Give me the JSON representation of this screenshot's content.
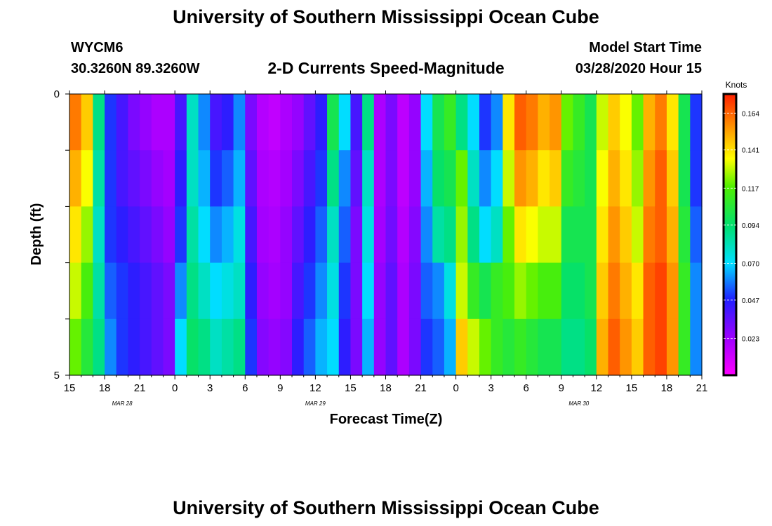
{
  "header": {
    "title": "University of Southern Mississippi Ocean Cube",
    "station": "WYCM6",
    "coords": "30.3260N 89.3260W",
    "subtitle": "2-D Currents Speed-Magnitude",
    "model_start_label": "Model Start Time",
    "model_start_value": "03/28/2020 Hour 15"
  },
  "footer": {
    "title": "University of Southern Mississippi Ocean Cube"
  },
  "chart_data": {
    "type": "heatmap",
    "title": "2-D Currents Speed-Magnitude",
    "xlabel": "Forecast Time(Z)",
    "ylabel": "Depth (ft)",
    "x_ticks": [
      "15",
      "18",
      "21",
      "0",
      "3",
      "6",
      "9",
      "12",
      "15",
      "18",
      "21",
      "0",
      "3",
      "6",
      "9",
      "12",
      "15",
      "18",
      "21"
    ],
    "date_labels": [
      {
        "label": "MAR  28",
        "tick_index": 1.5
      },
      {
        "label": "MAR  29",
        "tick_index": 7
      },
      {
        "label": "MAR  30",
        "tick_index": 14.5
      }
    ],
    "y_ticks": [
      "0",
      "5"
    ],
    "ylim": [
      0,
      5
    ],
    "colorbar": {
      "unit": "Knots",
      "min": 0.0,
      "max": 0.176,
      "ticks": [
        "0.164",
        "0.141",
        "0.117",
        "0.094",
        "0.070",
        "0.047",
        "0.023"
      ],
      "tick_values": [
        0.164,
        0.141,
        0.117,
        0.094,
        0.07,
        0.047,
        0.023
      ]
    },
    "hours": 54,
    "depth_levels": 5,
    "value_unit": "knots",
    "values_by_hour": [
      [
        0.16,
        0.15,
        0.14,
        0.13,
        0.12
      ],
      [
        0.145,
        0.135,
        0.125,
        0.115,
        0.105
      ],
      [
        0.09,
        0.085,
        0.08,
        0.085,
        0.09
      ],
      [
        0.05,
        0.05,
        0.05,
        0.055,
        0.06
      ],
      [
        0.04,
        0.04,
        0.045,
        0.05,
        0.05
      ],
      [
        0.03,
        0.035,
        0.04,
        0.045,
        0.045
      ],
      [
        0.025,
        0.03,
        0.035,
        0.04,
        0.04
      ],
      [
        0.02,
        0.025,
        0.03,
        0.035,
        0.035
      ],
      [
        0.02,
        0.022,
        0.025,
        0.03,
        0.03
      ],
      [
        0.04,
        0.045,
        0.05,
        0.06,
        0.07
      ],
      [
        0.08,
        0.08,
        0.085,
        0.09,
        0.095
      ],
      [
        0.06,
        0.065,
        0.07,
        0.08,
        0.09
      ],
      [
        0.04,
        0.05,
        0.06,
        0.07,
        0.08
      ],
      [
        0.045,
        0.055,
        0.065,
        0.075,
        0.085
      ],
      [
        0.06,
        0.065,
        0.075,
        0.08,
        0.09
      ],
      [
        0.03,
        0.035,
        0.04,
        0.045,
        0.05
      ],
      [
        0.018,
        0.02,
        0.022,
        0.025,
        0.028
      ],
      [
        0.015,
        0.018,
        0.02,
        0.022,
        0.025
      ],
      [
        0.02,
        0.022,
        0.025,
        0.025,
        0.028
      ],
      [
        0.025,
        0.03,
        0.035,
        0.04,
        0.045
      ],
      [
        0.035,
        0.04,
        0.045,
        0.05,
        0.055
      ],
      [
        0.045,
        0.05,
        0.055,
        0.06,
        0.065
      ],
      [
        0.1,
        0.09,
        0.08,
        0.075,
        0.07
      ],
      [
        0.07,
        0.06,
        0.055,
        0.05,
        0.045
      ],
      [
        0.04,
        0.035,
        0.03,
        0.03,
        0.03
      ],
      [
        0.09,
        0.08,
        0.075,
        0.07,
        0.065
      ],
      [
        0.02,
        0.02,
        0.022,
        0.025,
        0.025
      ],
      [
        0.03,
        0.03,
        0.032,
        0.035,
        0.035
      ],
      [
        0.016,
        0.016,
        0.018,
        0.02,
        0.02
      ],
      [
        0.025,
        0.025,
        0.028,
        0.03,
        0.03
      ],
      [
        0.07,
        0.065,
        0.06,
        0.055,
        0.05
      ],
      [
        0.1,
        0.095,
        0.085,
        0.06,
        0.055
      ],
      [
        0.11,
        0.1,
        0.09,
        0.075,
        0.065
      ],
      [
        0.09,
        0.12,
        0.125,
        0.13,
        0.145
      ],
      [
        0.07,
        0.08,
        0.09,
        0.11,
        0.13
      ],
      [
        0.05,
        0.06,
        0.07,
        0.1,
        0.12
      ],
      [
        0.06,
        0.07,
        0.08,
        0.11,
        0.11
      ],
      [
        0.14,
        0.13,
        0.12,
        0.115,
        0.105
      ],
      [
        0.165,
        0.155,
        0.14,
        0.125,
        0.11
      ],
      [
        0.16,
        0.15,
        0.135,
        0.12,
        0.105
      ],
      [
        0.15,
        0.14,
        0.13,
        0.115,
        0.1
      ],
      [
        0.155,
        0.145,
        0.13,
        0.115,
        0.1
      ],
      [
        0.12,
        0.11,
        0.1,
        0.095,
        0.09
      ],
      [
        0.11,
        0.105,
        0.1,
        0.095,
        0.09
      ],
      [
        0.1,
        0.1,
        0.1,
        0.1,
        0.095
      ],
      [
        0.13,
        0.135,
        0.14,
        0.145,
        0.15
      ],
      [
        0.145,
        0.15,
        0.155,
        0.16,
        0.165
      ],
      [
        0.135,
        0.14,
        0.145,
        0.15,
        0.155
      ],
      [
        0.12,
        0.125,
        0.13,
        0.14,
        0.145
      ],
      [
        0.15,
        0.155,
        0.16,
        0.165,
        0.165
      ],
      [
        0.16,
        0.165,
        0.165,
        0.17,
        0.17
      ],
      [
        0.14,
        0.145,
        0.15,
        0.155,
        0.155
      ],
      [
        0.1,
        0.1,
        0.105,
        0.11,
        0.11
      ],
      [
        0.05,
        0.05,
        0.055,
        0.06,
        0.06
      ]
    ]
  }
}
